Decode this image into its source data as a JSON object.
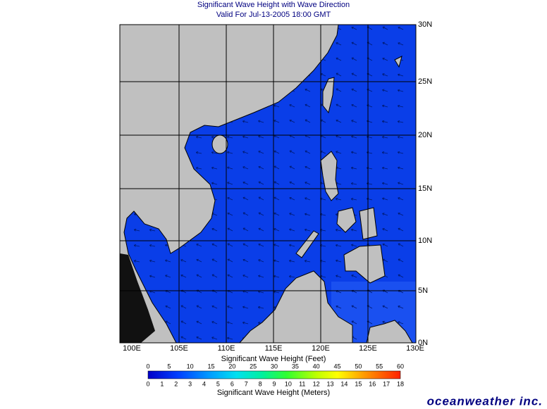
{
  "header": {
    "title": "Significant Wave Height with Wave Direction",
    "subtitle": "Valid For Jul-13-2005 18:00 GMT"
  },
  "map": {
    "lat_labels": [
      "0N",
      "5N",
      "10N",
      "15N",
      "20N",
      "25N",
      "30N"
    ],
    "lon_labels": [
      "100E",
      "105E",
      "110E",
      "115E",
      "120E",
      "125E",
      "130E"
    ]
  },
  "legend": {
    "feet_ticks": [
      0,
      5,
      10,
      15,
      20,
      25,
      30,
      35,
      40,
      45,
      50,
      55,
      60
    ],
    "feet_title": "Significant Wave Height (Feet)",
    "meter_ticks": [
      0,
      1,
      2,
      3,
      4,
      5,
      6,
      7,
      8,
      9,
      10,
      11,
      12,
      13,
      14,
      15,
      16,
      17,
      18
    ],
    "meter_title": "Significant Wave Height (Meters)"
  },
  "brand": "oceanweather inc."
}
